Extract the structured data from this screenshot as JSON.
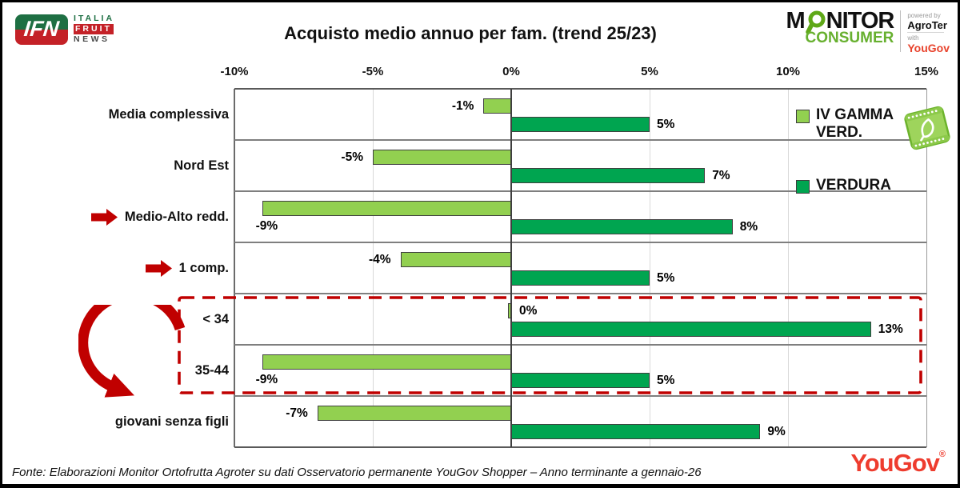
{
  "header": {
    "title": "Acquisto medio annuo per fam. (trend 25/23)",
    "ifn_logo": {
      "acronym": "IFN",
      "word1": "ITALIA",
      "word2": "FRUIT",
      "word3": "NEWS",
      "green": "#1e6f43",
      "red": "#c42127"
    },
    "monitor_logo": {
      "name_pre": "M",
      "name_post": "NITOR",
      "subtitle": "CONSUMER",
      "powered_by": "powered by",
      "partner1": "AgroTer",
      "with_label": "with",
      "partner2": "YouGov",
      "green": "#67b02f",
      "red": "#e8432d"
    }
  },
  "chart_data": {
    "type": "bar",
    "orientation": "horizontal",
    "title": "Acquisto medio annuo per fam. (trend 25/23)",
    "xlim": [
      -10,
      15
    ],
    "x_ticks": [
      {
        "value": -10,
        "label": "-10%"
      },
      {
        "value": -5,
        "label": "-5%"
      },
      {
        "value": 0,
        "label": "0%"
      },
      {
        "value": 5,
        "label": "5%"
      },
      {
        "value": 10,
        "label": "10%"
      },
      {
        "value": 15,
        "label": "15%"
      }
    ],
    "categories": [
      "Media complessiva",
      "Nord Est",
      "Medio-Alto redd.",
      "1 comp.",
      "< 34",
      "35-44",
      "giovani senza figli"
    ],
    "series": [
      {
        "name": "IV GAMMA VERD.",
        "color": "#92D050",
        "values": [
          -1,
          -5,
          -9,
          -4,
          0,
          -9,
          -7
        ],
        "labels": [
          "-1%",
          "-5%",
          "-9%",
          "-4%",
          "0%",
          "-9%",
          "-7%"
        ]
      },
      {
        "name": "VERDURA",
        "color": "#00A550",
        "values": [
          5,
          7,
          8,
          5,
          13,
          5,
          9
        ],
        "labels": [
          "5%",
          "7%",
          "8%",
          "5%",
          "13%",
          "5%",
          "9%"
        ]
      }
    ],
    "grid": true,
    "legend_position": "right",
    "annotations": {
      "row_arrows": [
        2,
        3
      ],
      "arrow_color": "#C00000",
      "highlight_box": {
        "rows": [
          4,
          5
        ],
        "color": "#C00000",
        "style": "dashed"
      },
      "curved_arrow": {
        "to_row": 6,
        "color": "#C00000"
      }
    }
  },
  "legend": {
    "items": [
      {
        "name": "IV GAMMA VERD.",
        "line1": "IV GAMMA",
        "line2": "VERD.",
        "color": "#92D050"
      },
      {
        "name": "VERDURA",
        "line1": "VERDURA",
        "line2": "",
        "color": "#00A550"
      }
    ]
  },
  "footer": {
    "source": "Fonte: Elaborazioni Monitor Ortofrutta Agroter su dati Osservatorio permanente YouGov Shopper – Anno terminante a gennaio-26",
    "yougov": "YouGov",
    "registered": "®"
  }
}
